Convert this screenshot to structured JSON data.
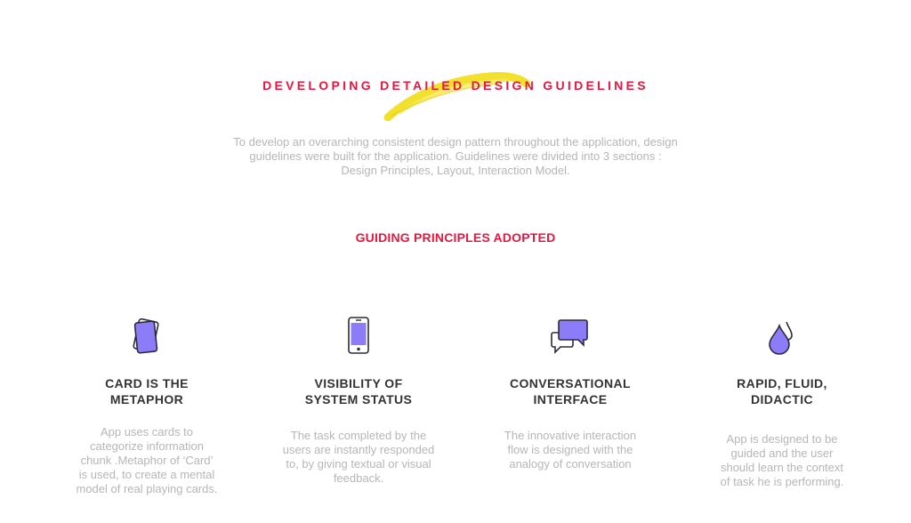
{
  "title": "DEVELOPING DETAILED DESIGN GUIDELINES",
  "intro_lines": [
    "To develop an overarching consistent design pattern throughout the application, design",
    "guidelines were built for the application. Guidelines were divided into 3 sections :",
    "Design Principles, Layout, Interaction Model."
  ],
  "subtitle": "GUIDING PRINCIPLES ADOPTED",
  "colors": {
    "accent": "#e8173f",
    "brush": "#f2e02e",
    "icon_fill": "#8c7cf7",
    "icon_stroke": "#2b2b3a",
    "muted_text": "#b6b6b6",
    "heading_text": "#333333"
  },
  "principles": [
    {
      "icon": "cards-icon",
      "heading": [
        "CARD IS THE",
        "METAPHOR"
      ],
      "desc": [
        "App uses cards to",
        "categorize information",
        "chunk .Metaphor of ‘Card’",
        "is used, to create a mental",
        "model of real playing cards."
      ]
    },
    {
      "icon": "mobile-phone-icon",
      "heading": [
        "VISIBILITY OF",
        "SYSTEM STATUS"
      ],
      "desc": [
        "The task completed by the",
        "users are instantly responded",
        "to, by giving textual or visual",
        "feedback."
      ]
    },
    {
      "icon": "chat-bubbles-icon",
      "heading": [
        "CONVERSATIONAL",
        "INTERFACE"
      ],
      "desc": [
        "The innovative interaction",
        "flow is designed with the",
        "analogy of conversation"
      ]
    },
    {
      "icon": "water-drop-icon",
      "heading": [
        "RAPID, FLUID,",
        "DIDACTIC"
      ],
      "desc": [
        "App is designed to be",
        "guided and the user",
        "should learn the context",
        "of task he is performing."
      ]
    }
  ]
}
